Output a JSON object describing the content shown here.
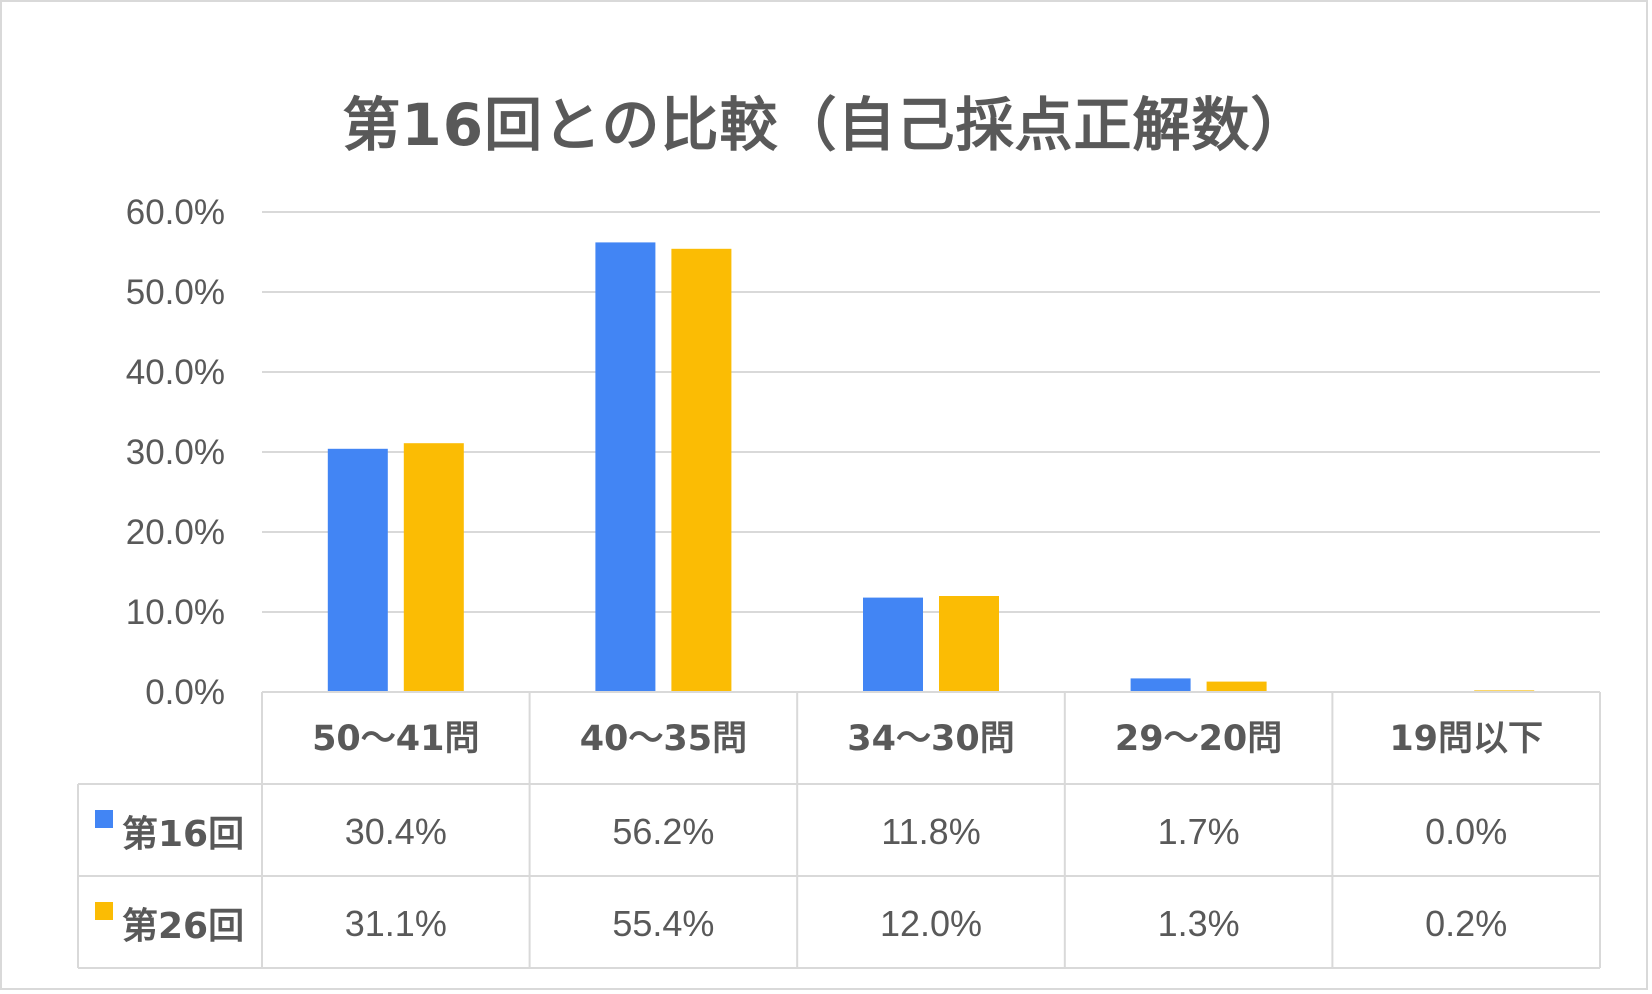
{
  "chart_data": {
    "type": "bar",
    "title": "第16回との比較（自己採点正解数）",
    "categories": [
      "50〜41問",
      "40〜35問",
      "34〜30問",
      "29〜20問",
      "19問以下"
    ],
    "series": [
      {
        "name": "第16回",
        "color": "#4285f4",
        "values": [
          30.4,
          56.2,
          11.8,
          1.7,
          0.0
        ],
        "labels": [
          "30.4%",
          "56.2%",
          "11.8%",
          "1.7%",
          "0.0%"
        ]
      },
      {
        "name": "第26回",
        "color": "#fbbc04",
        "values": [
          31.1,
          55.4,
          12.0,
          1.3,
          0.2
        ],
        "labels": [
          "31.1%",
          "55.4%",
          "12.0%",
          "1.3%",
          "0.2%"
        ]
      }
    ],
    "ylim": [
      0,
      60
    ],
    "yticks": [
      "0.0%",
      "10.0%",
      "20.0%",
      "30.0%",
      "40.0%",
      "50.0%",
      "60.0%"
    ],
    "grid": true,
    "legend": "data-table"
  }
}
